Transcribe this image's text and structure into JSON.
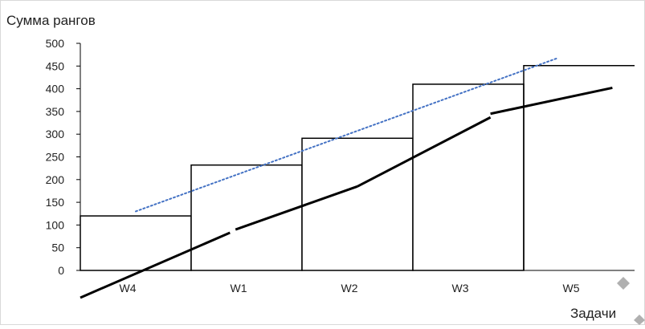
{
  "chart_data": {
    "type": "bar",
    "ylabel": "Сумма рангов",
    "xlabel": "Задачи",
    "categories": [
      "W4",
      "W1",
      "W2",
      "W3",
      "W5"
    ],
    "values": [
      120,
      232,
      291,
      410,
      451
    ],
    "ylim": [
      0,
      500
    ],
    "yticks": [
      0,
      50,
      100,
      150,
      200,
      250,
      300,
      350,
      400,
      450,
      500
    ],
    "grid": false,
    "bar_fill": "#ffffff",
    "bar_stroke": "#000000",
    "trend_line": {
      "style": "dotted",
      "color": "#4472C4",
      "x": [
        0.5,
        4.3
      ],
      "y": [
        130,
        467
      ]
    },
    "black_line": {
      "color": "#000000",
      "segments": [
        {
          "x": [
            0.0,
            1.35
          ],
          "y": [
            -60,
            83
          ]
        },
        {
          "x": [
            1.4,
            2.5
          ],
          "y": [
            90,
            185
          ]
        },
        {
          "x": [
            2.5,
            3.7
          ],
          "y": [
            185,
            337
          ]
        },
        {
          "x": [
            3.7,
            4.8
          ],
          "y": [
            345,
            402
          ]
        }
      ]
    },
    "decor_color": "#b0b0b0"
  }
}
